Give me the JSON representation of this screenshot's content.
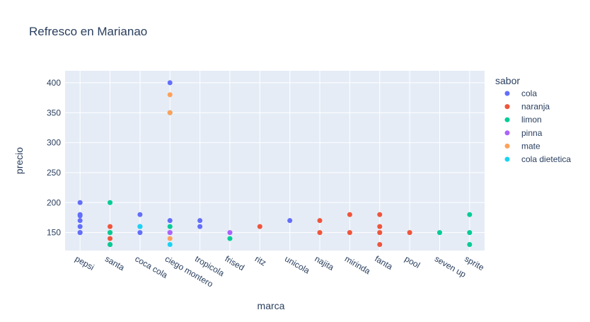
{
  "chart_data": {
    "type": "scatter",
    "title": "Refresco en Marianao",
    "xlabel": "marca",
    "ylabel": "precio",
    "categories": [
      "pepsi",
      "santa",
      "coca cola",
      "ciego montero",
      "tropicola",
      "frised",
      "ritz",
      "unicola",
      "najita",
      "mirinda",
      "fanta",
      "pool",
      "seven up",
      "sprite"
    ],
    "ylim": [
      120,
      420
    ],
    "yticks": [
      150,
      200,
      250,
      300,
      350,
      400
    ],
    "grid": true,
    "legend_title": "sabor",
    "legend_position": "right",
    "series": [
      {
        "name": "cola",
        "color": "#636efa",
        "points": [
          [
            "pepsi",
            200
          ],
          [
            "pepsi",
            180
          ],
          [
            "pepsi",
            178
          ],
          [
            "pepsi",
            170
          ],
          [
            "pepsi",
            160
          ],
          [
            "pepsi",
            150
          ],
          [
            "pepsi",
            150
          ],
          [
            "coca cola",
            180
          ],
          [
            "coca cola",
            160
          ],
          [
            "coca cola",
            150
          ],
          [
            "ciego montero",
            400
          ],
          [
            "ciego montero",
            170
          ],
          [
            "ciego montero",
            150
          ],
          [
            "tropicola",
            170
          ],
          [
            "tropicola",
            160
          ],
          [
            "unicola",
            170
          ]
        ]
      },
      {
        "name": "naranja",
        "color": "#EF553B",
        "points": [
          [
            "santa",
            160
          ],
          [
            "santa",
            150
          ],
          [
            "santa",
            140
          ],
          [
            "santa",
            130
          ],
          [
            "ritz",
            160
          ],
          [
            "najita",
            170
          ],
          [
            "najita",
            150
          ],
          [
            "mirinda",
            180
          ],
          [
            "mirinda",
            150
          ],
          [
            "fanta",
            180
          ],
          [
            "fanta",
            160
          ],
          [
            "fanta",
            150
          ],
          [
            "fanta",
            130
          ],
          [
            "pool",
            150
          ]
        ]
      },
      {
        "name": "limon",
        "color": "#00cc96",
        "points": [
          [
            "santa",
            200
          ],
          [
            "santa",
            150
          ],
          [
            "santa",
            130
          ],
          [
            "ciego montero",
            160
          ],
          [
            "ciego montero",
            350
          ],
          [
            "frised",
            140
          ],
          [
            "seven up",
            150
          ],
          [
            "sprite",
            180
          ],
          [
            "sprite",
            150
          ],
          [
            "sprite",
            130
          ]
        ]
      },
      {
        "name": "pinna",
        "color": "#ab63fa",
        "points": [
          [
            "ciego montero",
            150
          ],
          [
            "frised",
            150
          ]
        ]
      },
      {
        "name": "mate",
        "color": "#FFA15A",
        "points": [
          [
            "ciego montero",
            380
          ],
          [
            "ciego montero",
            350
          ],
          [
            "ciego montero",
            140
          ]
        ]
      },
      {
        "name": "cola dietetica",
        "color": "#19d3f3",
        "points": [
          [
            "coca cola",
            160
          ],
          [
            "ciego montero",
            130
          ]
        ]
      }
    ]
  }
}
